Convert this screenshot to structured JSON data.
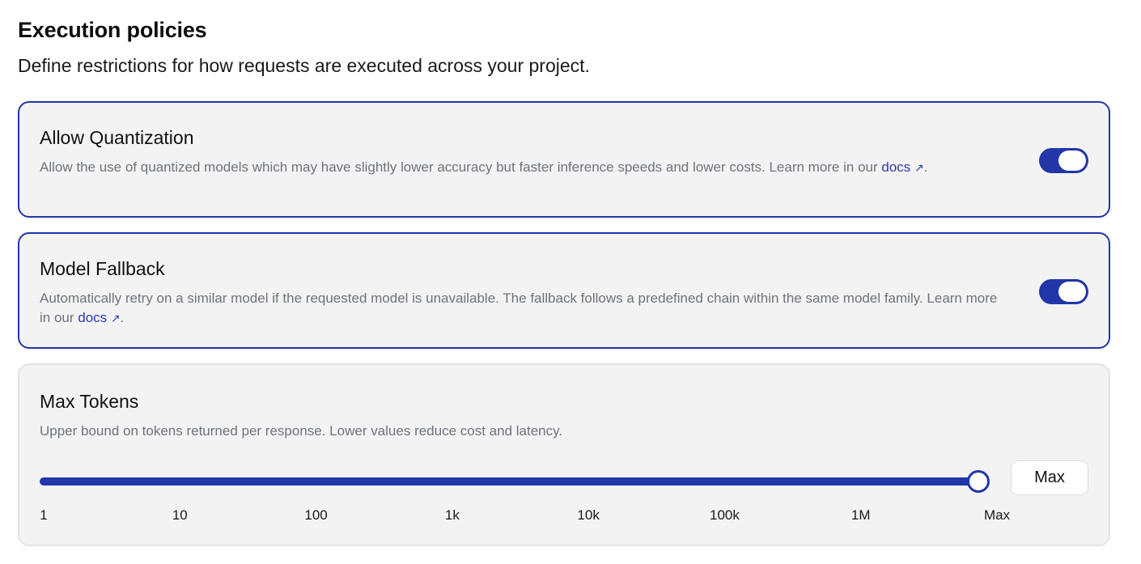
{
  "header": {
    "title": "Execution policies",
    "subtitle": "Define restrictions for how requests are executed across your project."
  },
  "colors": {
    "accent": "#2236a8",
    "card_bg": "#f3f3f4",
    "muted_text": "#6f737b",
    "link": "#2a3bb0"
  },
  "policies": {
    "quantization": {
      "title": "Allow Quantization",
      "description": "Allow the use of quantized models which may have slightly lower accuracy but faster inference speeds and lower costs. Learn more in our",
      "link_text": "docs",
      "link_icon": "↗",
      "trailing": ".",
      "enabled": true
    },
    "fallback": {
      "title": "Model Fallback",
      "description": "Automatically retry on a similar model if the requested model is unavailable. The fallback follows a predefined chain within the same model family. Learn more in our",
      "link_text": "docs",
      "link_icon": "↗",
      "trailing": ".",
      "enabled": true
    },
    "max_tokens": {
      "title": "Max Tokens",
      "description": "Upper bound on tokens returned per response. Lower values reduce cost and latency.",
      "value_label": "Max",
      "slider_value": 1.0,
      "ticks": [
        "1",
        "10",
        "100",
        "1k",
        "10k",
        "100k",
        "1M",
        "Max"
      ]
    }
  }
}
